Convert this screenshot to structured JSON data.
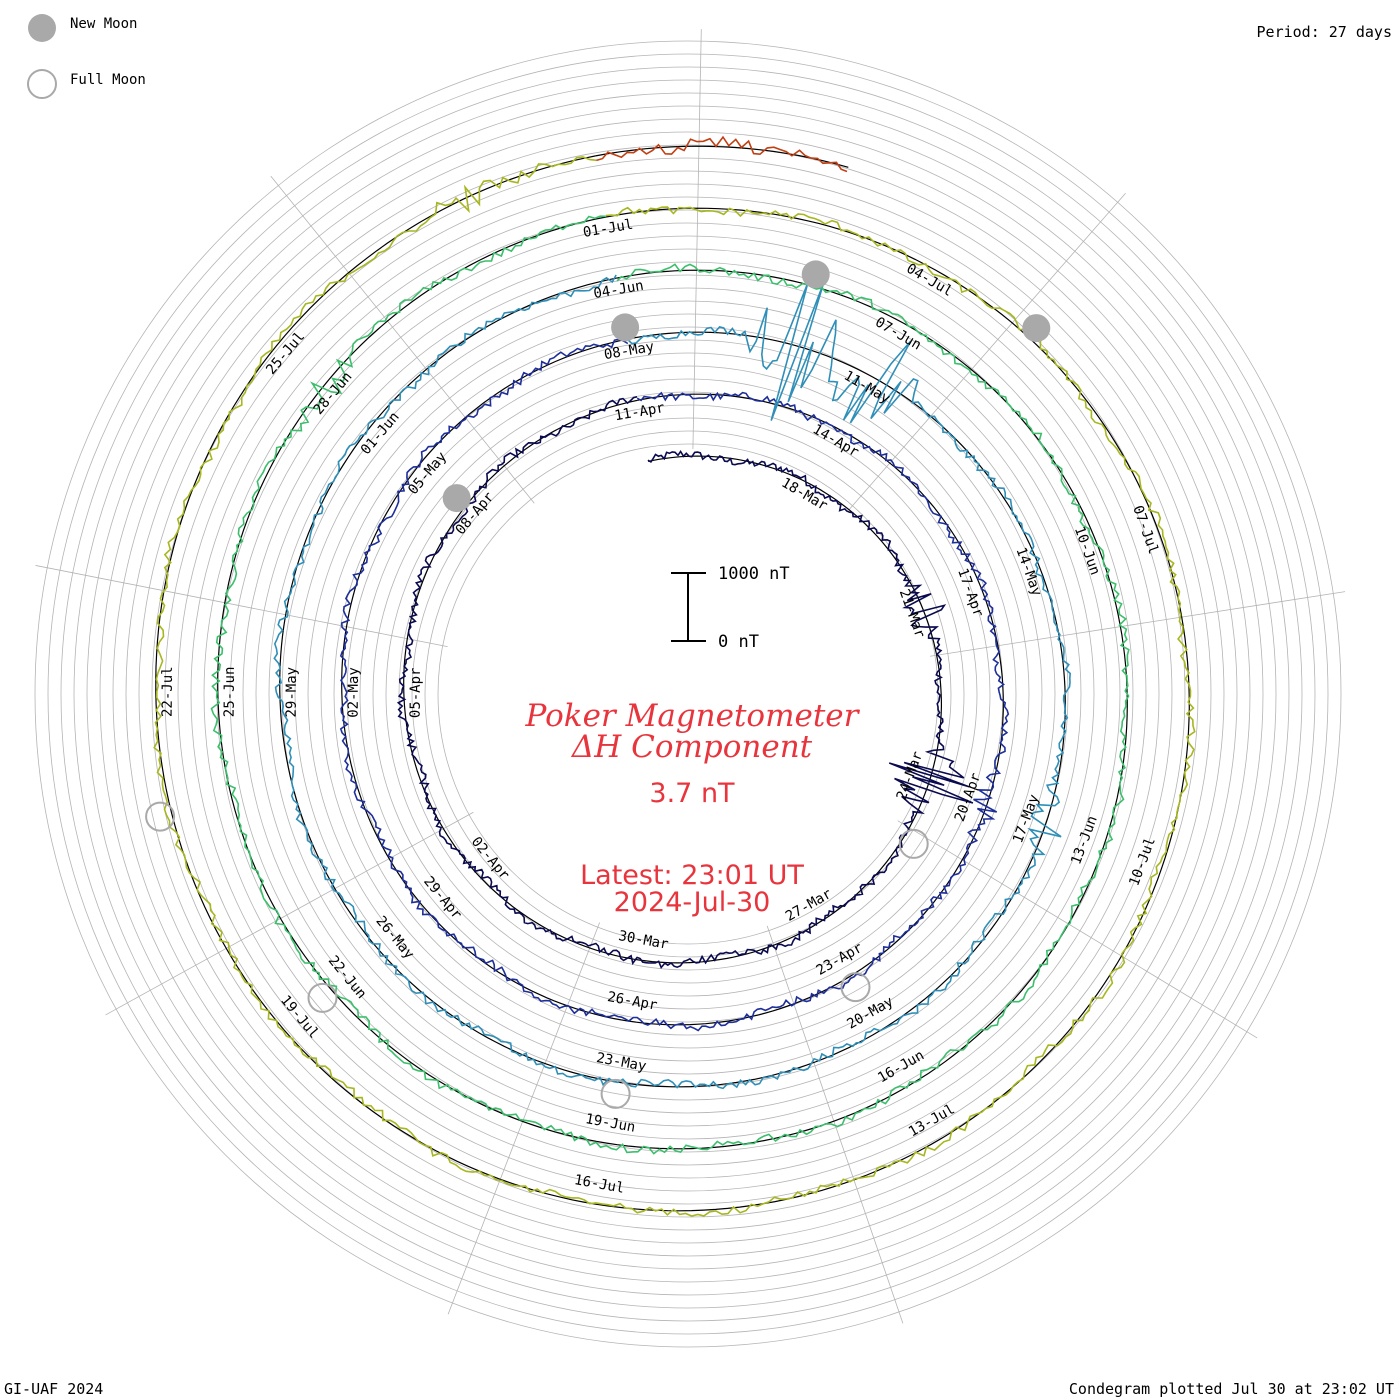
{
  "header": {
    "period": "Period: 27 days",
    "legend": [
      {
        "label": "New Moon",
        "kind": "new"
      },
      {
        "label": "Full Moon",
        "kind": "full"
      }
    ]
  },
  "footer": {
    "credit": "GI-UAF 2024",
    "plotted": "Condegram plotted Jul 30 at 23:02 UT"
  },
  "center": {
    "title_line1": "Poker Magnetometer",
    "title_line2": "ΔH Component",
    "current_value": "3.7 nT",
    "latest_line1": "Latest: 23:01 UT",
    "latest_line2": "2024-Jul-30",
    "scale_top": "1000 nT",
    "scale_bottom": "0 nT"
  },
  "chart_data": {
    "type": "line",
    "title": "Poker Magnetometer ΔH Component",
    "period_days": 27,
    "scale_bar_nT": [
      0,
      1000
    ],
    "series": [
      {
        "name": "",
        "color": "#0a0a50",
        "start": "2024-03-15",
        "end": "2024-04-11",
        "date_labels": [
          "18-Mar",
          "21-Mar",
          "24-Mar",
          "27-Mar",
          "30-Mar",
          "02-Apr",
          "05-Apr",
          "08-Apr",
          "11-Apr"
        ],
        "disturbances": [
          {
            "date": "2024-03-24",
            "delta_nT": 900
          },
          {
            "date": "2024-03-21",
            "delta_nT": 350
          }
        ]
      },
      {
        "name": "",
        "color": "#1e2f9a",
        "start": "2024-04-11",
        "end": "2024-05-08",
        "date_labels": [
          "14-Apr",
          "17-Apr",
          "20-Apr",
          "23-Apr",
          "26-Apr",
          "29-Apr",
          "02-May",
          "05-May",
          "08-May"
        ],
        "disturbances": [
          {
            "date": "2024-04-20",
            "delta_nT": 220
          }
        ]
      },
      {
        "name": "",
        "color": "#2f8fb8",
        "start": "2024-05-08",
        "end": "2024-06-04",
        "date_labels": [
          "11-May",
          "14-May",
          "17-May",
          "20-May",
          "23-May",
          "26-May",
          "29-May",
          "01-Jun",
          "04-Jun"
        ],
        "disturbances": [
          {
            "date": "2024-05-10",
            "delta_nT": 1300
          },
          {
            "date": "2024-05-11",
            "delta_nT": 1200
          },
          {
            "date": "2024-05-17",
            "delta_nT": 300
          }
        ]
      },
      {
        "name": "",
        "color": "#3cbf6c",
        "start": "2024-06-04",
        "end": "2024-07-01",
        "date_labels": [
          "07-Jun",
          "10-Jun",
          "13-Jun",
          "16-Jun",
          "19-Jun",
          "22-Jun",
          "25-Jun",
          "28-Jun",
          "01-Jul"
        ],
        "disturbances": [
          {
            "date": "2024-06-28",
            "delta_nT": 250
          }
        ]
      },
      {
        "name": "",
        "color": "#a8b61f",
        "start": "2024-07-01",
        "end": "2024-07-28",
        "date_labels": [
          "04-Jul",
          "07-Jul",
          "10-Jul",
          "13-Jul",
          "16-Jul",
          "19-Jul",
          "22-Jul",
          "25-Jul"
        ],
        "disturbances": [
          {
            "date": "2024-07-27",
            "delta_nT": 200
          }
        ]
      },
      {
        "name": "",
        "color": "#c23f12",
        "start": "2024-07-28",
        "end": "2024-07-30",
        "date_labels": [],
        "disturbances": [
          {
            "date": "2024-07-29",
            "delta_nT": 180
          }
        ]
      }
    ],
    "moon_phases": [
      {
        "type": "new",
        "date": "2024-04-08"
      },
      {
        "type": "full",
        "date": "2024-03-25"
      },
      {
        "type": "full",
        "date": "2024-04-23"
      },
      {
        "type": "new",
        "date": "2024-05-08"
      },
      {
        "type": "full",
        "date": "2024-05-23"
      },
      {
        "type": "new",
        "date": "2024-06-06"
      },
      {
        "type": "full",
        "date": "2024-06-22"
      },
      {
        "type": "new",
        "date": "2024-07-05"
      },
      {
        "type": "full",
        "date": "2024-07-21"
      }
    ]
  },
  "colors": {
    "title": "#e8343c",
    "grid": "#b4b4b4",
    "baseline": "#000000"
  }
}
